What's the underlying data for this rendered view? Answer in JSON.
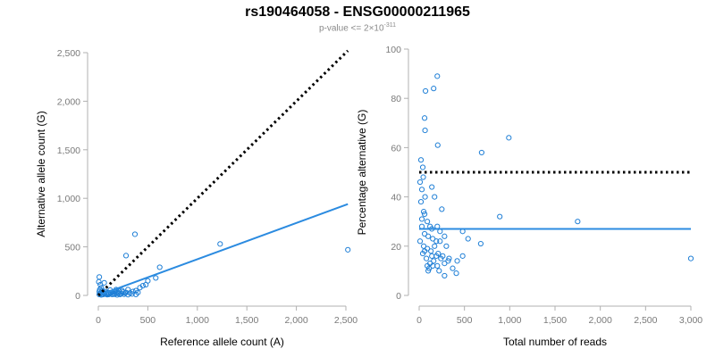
{
  "title": "rs190464058 - ENSG00000211965",
  "subtitle_base": "p-value <= 2×10",
  "subtitle_exp": "-311",
  "colors": {
    "points": "#1f7fd6",
    "fit": "#2b8be0",
    "reference": "#000000",
    "axis": "#b0b0b0",
    "tick_text": "#7a7a7a"
  },
  "chart_data": [
    {
      "type": "scatter",
      "xlabel": "Reference allele count (A)",
      "ylabel": "Alternative allele count (G)",
      "xlim": [
        0,
        2500
      ],
      "ylim": [
        0,
        2500
      ],
      "xticks": [
        0,
        500,
        1000,
        1500,
        2000,
        2500
      ],
      "xtick_labels": [
        "0",
        "500",
        "1,000",
        "1,500",
        "2,000",
        "2,500"
      ],
      "yticks": [
        0,
        500,
        1000,
        1500,
        2000,
        2500
      ],
      "ytick_labels": [
        "0",
        "500",
        "1,000",
        "1,500",
        "2,000",
        "2,500"
      ],
      "points": [
        [
          10,
          190
        ],
        [
          5,
          140
        ],
        [
          60,
          130
        ],
        [
          20,
          110
        ],
        [
          30,
          80
        ],
        [
          15,
          60
        ],
        [
          40,
          50
        ],
        [
          70,
          40
        ],
        [
          100,
          30
        ],
        [
          120,
          55
        ],
        [
          130,
          30
        ],
        [
          150,
          20
        ],
        [
          170,
          40
        ],
        [
          180,
          60
        ],
        [
          200,
          30
        ],
        [
          210,
          45
        ],
        [
          230,
          20
        ],
        [
          250,
          35
        ],
        [
          280,
          30
        ],
        [
          300,
          60
        ],
        [
          320,
          25
        ],
        [
          350,
          40
        ],
        [
          380,
          50
        ],
        [
          400,
          30
        ],
        [
          420,
          80
        ],
        [
          450,
          100
        ],
        [
          480,
          110
        ],
        [
          500,
          150
        ],
        [
          580,
          180
        ],
        [
          620,
          290
        ],
        [
          280,
          410
        ],
        [
          370,
          630
        ],
        [
          1230,
          530
        ],
        [
          2520,
          470
        ],
        [
          10,
          10
        ],
        [
          20,
          20
        ],
        [
          30,
          5
        ],
        [
          40,
          15
        ],
        [
          50,
          10
        ],
        [
          60,
          25
        ],
        [
          80,
          12
        ],
        [
          90,
          8
        ],
        [
          110,
          18
        ],
        [
          140,
          10
        ],
        [
          160,
          15
        ],
        [
          190,
          5
        ],
        [
          220,
          10
        ],
        [
          260,
          12
        ],
        [
          300,
          8
        ],
        [
          340,
          15
        ],
        [
          380,
          10
        ],
        [
          10,
          40
        ],
        [
          25,
          30
        ],
        [
          45,
          30
        ],
        [
          65,
          15
        ],
        [
          85,
          25
        ],
        [
          105,
          10
        ],
        [
          125,
          20
        ],
        [
          145,
          35
        ],
        [
          165,
          12
        ],
        [
          185,
          28
        ],
        [
          205,
          18
        ],
        [
          240,
          50
        ],
        [
          270,
          25
        ]
      ],
      "lines": [
        {
          "kind": "fit",
          "x": [
            0,
            2520
          ],
          "y": [
            0,
            940
          ]
        },
        {
          "kind": "reference",
          "x": [
            0,
            2520
          ],
          "y": [
            0,
            2520
          ]
        }
      ],
      "grid": false
    },
    {
      "type": "scatter",
      "xlabel": "Total number of reads",
      "ylabel": "Percentage alternative (G)",
      "xlim": [
        0,
        3000
      ],
      "ylim": [
        0,
        100
      ],
      "xticks": [
        0,
        500,
        1000,
        1500,
        2000,
        2500,
        3000
      ],
      "xtick_labels": [
        "0",
        "500",
        "1,000",
        "1,500",
        "2,000",
        "2,500",
        "3,000"
      ],
      "yticks": [
        0,
        20,
        40,
        60,
        80,
        100
      ],
      "ytick_labels": [
        "0",
        "20",
        "40",
        "60",
        "80",
        "100"
      ],
      "points": [
        [
          200,
          89
        ],
        [
          70,
          83
        ],
        [
          160,
          84
        ],
        [
          60,
          72
        ],
        [
          65,
          67
        ],
        [
          205,
          61
        ],
        [
          990,
          64
        ],
        [
          690,
          58
        ],
        [
          20,
          55
        ],
        [
          40,
          52
        ],
        [
          45,
          48
        ],
        [
          10,
          46
        ],
        [
          140,
          44
        ],
        [
          30,
          43
        ],
        [
          170,
          40
        ],
        [
          65,
          40
        ],
        [
          20,
          38
        ],
        [
          250,
          35
        ],
        [
          60,
          33
        ],
        [
          890,
          32
        ],
        [
          1750,
          30
        ],
        [
          30,
          31
        ],
        [
          90,
          30
        ],
        [
          120,
          28
        ],
        [
          200,
          28
        ],
        [
          140,
          27
        ],
        [
          480,
          26
        ],
        [
          60,
          25
        ],
        [
          100,
          24
        ],
        [
          150,
          23
        ],
        [
          230,
          22
        ],
        [
          280,
          24
        ],
        [
          10,
          22
        ],
        [
          50,
          20
        ],
        [
          90,
          19
        ],
        [
          130,
          18
        ],
        [
          170,
          20
        ],
        [
          210,
          17
        ],
        [
          260,
          16
        ],
        [
          300,
          20
        ],
        [
          540,
          23
        ],
        [
          680,
          21
        ],
        [
          40,
          17
        ],
        [
          80,
          15
        ],
        [
          120,
          13
        ],
        [
          160,
          14
        ],
        [
          200,
          12
        ],
        [
          240,
          15
        ],
        [
          280,
          13
        ],
        [
          320,
          14
        ],
        [
          370,
          11
        ],
        [
          420,
          14
        ],
        [
          480,
          16
        ],
        [
          3000,
          15
        ],
        [
          110,
          11
        ],
        [
          150,
          12
        ],
        [
          190,
          16
        ],
        [
          60,
          18
        ],
        [
          100,
          10
        ],
        [
          330,
          15
        ],
        [
          220,
          10
        ],
        [
          410,
          9
        ],
        [
          280,
          8
        ],
        [
          90,
          12
        ],
        [
          140,
          16
        ],
        [
          190,
          22
        ],
        [
          230,
          26
        ],
        [
          30,
          28
        ],
        [
          50,
          34
        ]
      ],
      "lines": [
        {
          "kind": "fit",
          "x": [
            0,
            3000
          ],
          "y": [
            27,
            27
          ]
        },
        {
          "kind": "reference",
          "x": [
            0,
            3000
          ],
          "y": [
            50,
            50
          ]
        }
      ],
      "grid": false
    }
  ]
}
